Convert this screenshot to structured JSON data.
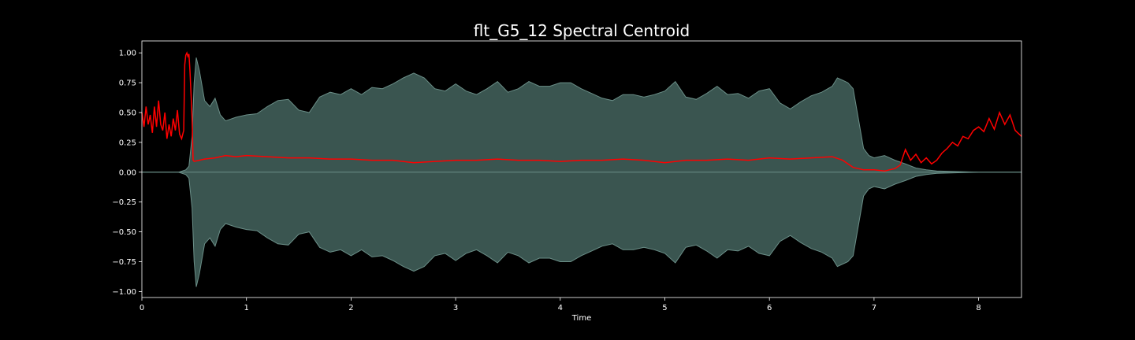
{
  "chart_data": {
    "type": "area",
    "title": "flt_G5_12 Spectral Centroid",
    "xlabel": "Time",
    "ylabel": "",
    "xlim": [
      0,
      8.41
    ],
    "ylim": [
      -1.05,
      1.1
    ],
    "xticks": [
      0,
      1,
      2,
      3,
      4,
      5,
      6,
      7,
      8
    ],
    "xtick_labels": [
      "0",
      "1",
      "2",
      "3",
      "4",
      "5",
      "6",
      "7",
      "8"
    ],
    "yticks": [
      1.0,
      0.75,
      0.5,
      0.25,
      0.0,
      -0.25,
      -0.5,
      -0.75,
      -1.0
    ],
    "ytick_labels": [
      "1.00",
      "0.75",
      "0.50",
      "0.25",
      "0.00",
      "−0.25",
      "−0.50",
      "−0.75",
      "−1.00"
    ],
    "grid": false,
    "colors": {
      "background": "#000000",
      "waveform_fill": "#3a5550",
      "waveform_edge": "#6b8f88",
      "centroid": "#ff0000",
      "text": "#ffffff"
    },
    "series": [
      {
        "kind": "waveform-envelope",
        "x": [
          0,
          0.35,
          0.42,
          0.45,
          0.48,
          0.5,
          0.52,
          0.55,
          0.6,
          0.65,
          0.7,
          0.75,
          0.8,
          0.9,
          1.0,
          1.1,
          1.2,
          1.3,
          1.4,
          1.5,
          1.6,
          1.7,
          1.8,
          1.9,
          2.0,
          2.1,
          2.2,
          2.3,
          2.4,
          2.5,
          2.6,
          2.7,
          2.8,
          2.9,
          3.0,
          3.1,
          3.2,
          3.3,
          3.4,
          3.5,
          3.6,
          3.7,
          3.8,
          3.9,
          4.0,
          4.1,
          4.2,
          4.3,
          4.4,
          4.5,
          4.6,
          4.7,
          4.8,
          4.9,
          5.0,
          5.1,
          5.2,
          5.3,
          5.4,
          5.5,
          5.6,
          5.7,
          5.8,
          5.9,
          6.0,
          6.1,
          6.2,
          6.3,
          6.4,
          6.5,
          6.6,
          6.65,
          6.7,
          6.75,
          6.8,
          6.85,
          6.9,
          6.95,
          7.0,
          7.1,
          7.2,
          7.3,
          7.4,
          7.5,
          7.6,
          7.8,
          8.0,
          8.41
        ],
        "values": [
          0.0,
          0.0,
          0.02,
          0.05,
          0.3,
          0.75,
          0.96,
          0.85,
          0.6,
          0.55,
          0.62,
          0.48,
          0.43,
          0.46,
          0.48,
          0.49,
          0.55,
          0.6,
          0.61,
          0.52,
          0.5,
          0.63,
          0.67,
          0.65,
          0.7,
          0.65,
          0.71,
          0.7,
          0.74,
          0.79,
          0.83,
          0.79,
          0.7,
          0.68,
          0.74,
          0.68,
          0.65,
          0.7,
          0.76,
          0.67,
          0.7,
          0.76,
          0.72,
          0.72,
          0.75,
          0.75,
          0.7,
          0.66,
          0.62,
          0.6,
          0.65,
          0.65,
          0.63,
          0.65,
          0.68,
          0.76,
          0.63,
          0.61,
          0.66,
          0.72,
          0.65,
          0.66,
          0.62,
          0.68,
          0.7,
          0.58,
          0.53,
          0.59,
          0.64,
          0.67,
          0.72,
          0.79,
          0.77,
          0.75,
          0.7,
          0.45,
          0.2,
          0.14,
          0.12,
          0.14,
          0.1,
          0.07,
          0.035,
          0.02,
          0.01,
          0.005,
          0.0,
          0.0
        ]
      },
      {
        "kind": "spectral-centroid",
        "x": [
          0.0,
          0.02,
          0.04,
          0.06,
          0.08,
          0.1,
          0.12,
          0.14,
          0.16,
          0.18,
          0.2,
          0.22,
          0.24,
          0.26,
          0.28,
          0.3,
          0.32,
          0.34,
          0.36,
          0.38,
          0.4,
          0.41,
          0.42,
          0.43,
          0.44,
          0.45,
          0.46,
          0.47,
          0.48,
          0.49,
          0.5,
          0.55,
          0.6,
          0.7,
          0.8,
          0.9,
          1.0,
          1.2,
          1.4,
          1.6,
          1.8,
          2.0,
          2.2,
          2.4,
          2.6,
          2.8,
          3.0,
          3.2,
          3.4,
          3.6,
          3.8,
          4.0,
          4.2,
          4.4,
          4.6,
          4.8,
          5.0,
          5.2,
          5.4,
          5.6,
          5.8,
          6.0,
          6.2,
          6.4,
          6.6,
          6.7,
          6.8,
          6.9,
          7.0,
          7.1,
          7.2,
          7.25,
          7.3,
          7.35,
          7.4,
          7.45,
          7.5,
          7.55,
          7.6,
          7.65,
          7.7,
          7.75,
          7.8,
          7.85,
          7.9,
          7.95,
          8.0,
          8.05,
          8.1,
          8.15,
          8.2,
          8.25,
          8.3,
          8.35,
          8.41
        ],
        "values": [
          0.5,
          0.38,
          0.55,
          0.4,
          0.48,
          0.33,
          0.55,
          0.38,
          0.6,
          0.4,
          0.35,
          0.5,
          0.28,
          0.4,
          0.3,
          0.45,
          0.35,
          0.52,
          0.32,
          0.28,
          0.35,
          0.9,
          0.98,
          1.0,
          0.97,
          0.99,
          0.85,
          0.65,
          0.45,
          0.1,
          0.09,
          0.1,
          0.11,
          0.12,
          0.14,
          0.13,
          0.14,
          0.13,
          0.12,
          0.12,
          0.11,
          0.11,
          0.1,
          0.1,
          0.08,
          0.09,
          0.1,
          0.1,
          0.11,
          0.1,
          0.1,
          0.09,
          0.1,
          0.1,
          0.11,
          0.1,
          0.08,
          0.1,
          0.1,
          0.11,
          0.1,
          0.12,
          0.11,
          0.12,
          0.13,
          0.1,
          0.04,
          0.02,
          0.02,
          0.01,
          0.03,
          0.06,
          0.19,
          0.1,
          0.15,
          0.08,
          0.12,
          0.07,
          0.1,
          0.16,
          0.2,
          0.25,
          0.22,
          0.3,
          0.28,
          0.35,
          0.38,
          0.34,
          0.45,
          0.36,
          0.5,
          0.4,
          0.48,
          0.35,
          0.3
        ]
      }
    ]
  }
}
